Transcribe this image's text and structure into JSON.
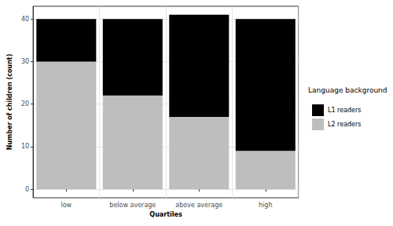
{
  "chart_data": {
    "type": "bar",
    "stacked": true,
    "x_label": "Quartiles",
    "y_label": "Number of children (count)",
    "legend_title": "Language background",
    "legend": "right",
    "categories": [
      "low",
      "below average",
      "above average",
      "high"
    ],
    "series": [
      {
        "name": "L1 readers",
        "color": "#000000",
        "values": [
          10,
          18,
          24,
          31
        ]
      },
      {
        "name": "L2 readers",
        "color": "#bebebe",
        "values": [
          30,
          22,
          17,
          9
        ]
      }
    ],
    "ylim": [
      -2,
      43
    ],
    "yticks": [
      0,
      10,
      20,
      30,
      40
    ],
    "grid": true
  }
}
